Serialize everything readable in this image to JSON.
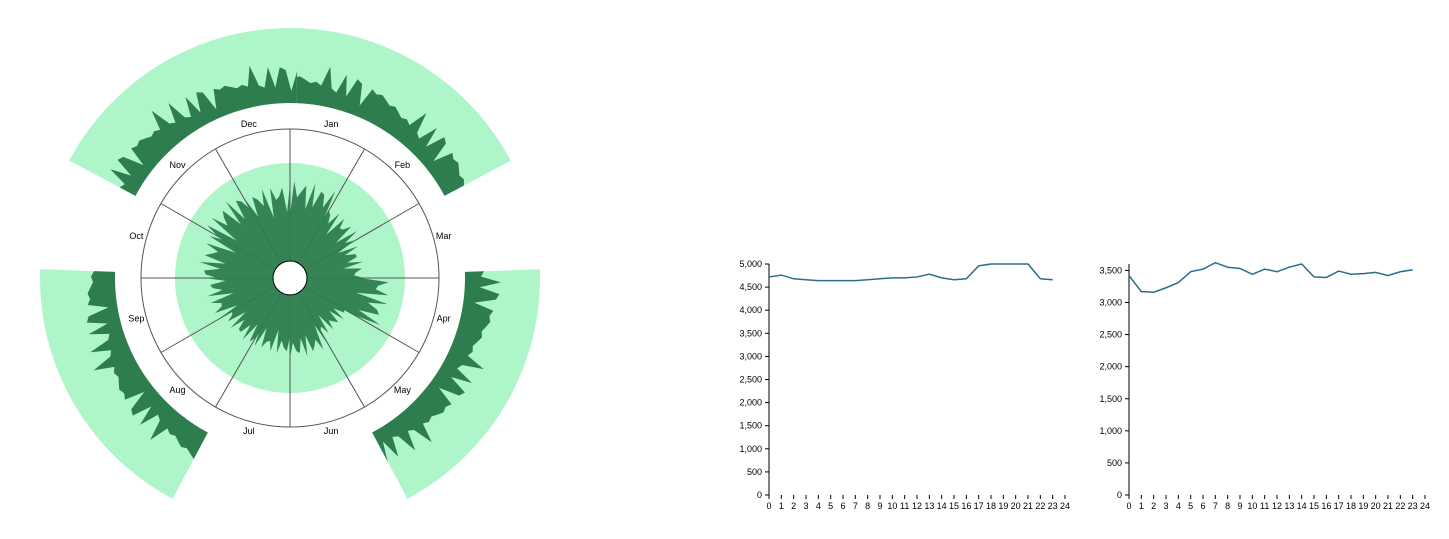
{
  "colors": {
    "wedge_fill": "#aef5c9",
    "wedge_dark": "#2e7d4f",
    "highlight": "#7fe060",
    "line": "#2c6e8f",
    "axis": "#000000",
    "ring": "#555555"
  },
  "radial": {
    "months": [
      "Jan",
      "Feb",
      "Mar",
      "Apr",
      "May",
      "Jun",
      "Jul",
      "Aug",
      "Sep",
      "Oct",
      "Nov",
      "Dec"
    ],
    "petals": [
      0.78,
      0.62,
      0.55,
      0.82,
      0.48,
      0.6,
      0.57,
      0.58,
      0.65,
      0.72,
      0.8,
      0.74
    ],
    "outer_segments": [
      {
        "start_month": "Jan",
        "end_month": "Feb"
      },
      {
        "start_month": "Apr",
        "end_month": "May"
      },
      {
        "start_month": "Aug",
        "end_month": "Sep"
      },
      {
        "start_month": "Nov",
        "end_month": "Dec"
      }
    ]
  },
  "chart_data": [
    {
      "type": "line",
      "x": [
        0,
        1,
        2,
        3,
        4,
        5,
        6,
        7,
        8,
        9,
        10,
        11,
        12,
        13,
        14,
        15,
        16,
        17,
        18,
        19,
        20,
        21,
        22,
        23
      ],
      "y": [
        4720,
        4760,
        4680,
        4660,
        4640,
        4640,
        4640,
        4640,
        4660,
        4680,
        4700,
        4700,
        4720,
        4780,
        4700,
        4660,
        4680,
        4960,
        5000,
        5000,
        5000,
        5000,
        4680,
        4660
      ],
      "xlim": [
        0,
        24
      ],
      "ylim": [
        0,
        5000
      ],
      "xticks": [
        "0",
        "1",
        "2",
        "3",
        "4",
        "5",
        "6",
        "7",
        "8",
        "9",
        "10",
        "11",
        "12",
        "13",
        "14",
        "15",
        "16",
        "17",
        "18",
        "19",
        "20",
        "21",
        "22",
        "23",
        "24"
      ],
      "yticks": [
        "0",
        "500",
        "1,000",
        "1,500",
        "2,000",
        "2,500",
        "3,000",
        "3,500",
        "4,000",
        "4,500",
        "5,000"
      ],
      "ytick_values": [
        0,
        500,
        1000,
        1500,
        2000,
        2500,
        3000,
        3500,
        4000,
        4500,
        5000
      ]
    },
    {
      "type": "line",
      "x": [
        0,
        1,
        2,
        3,
        4,
        5,
        6,
        7,
        8,
        9,
        10,
        11,
        12,
        13,
        14,
        15,
        16,
        17,
        18,
        19,
        20,
        21,
        22,
        23
      ],
      "y": [
        3420,
        3170,
        3160,
        3230,
        3310,
        3480,
        3520,
        3620,
        3550,
        3530,
        3440,
        3520,
        3480,
        3550,
        3600,
        3400,
        3390,
        3490,
        3440,
        3450,
        3470,
        3420,
        3480,
        3510
      ],
      "xlim": [
        0,
        24
      ],
      "ylim": [
        0,
        3600
      ],
      "xticks": [
        "0",
        "1",
        "2",
        "3",
        "4",
        "5",
        "6",
        "7",
        "8",
        "9",
        "10",
        "11",
        "12",
        "13",
        "14",
        "15",
        "16",
        "17",
        "18",
        "19",
        "20",
        "21",
        "22",
        "23",
        "24"
      ],
      "yticks": [
        "0",
        "500",
        "1,000",
        "1,500",
        "2,000",
        "2,500",
        "3,000",
        "3,500"
      ],
      "ytick_values": [
        0,
        500,
        1000,
        1500,
        2000,
        2500,
        3000,
        3500
      ]
    }
  ]
}
